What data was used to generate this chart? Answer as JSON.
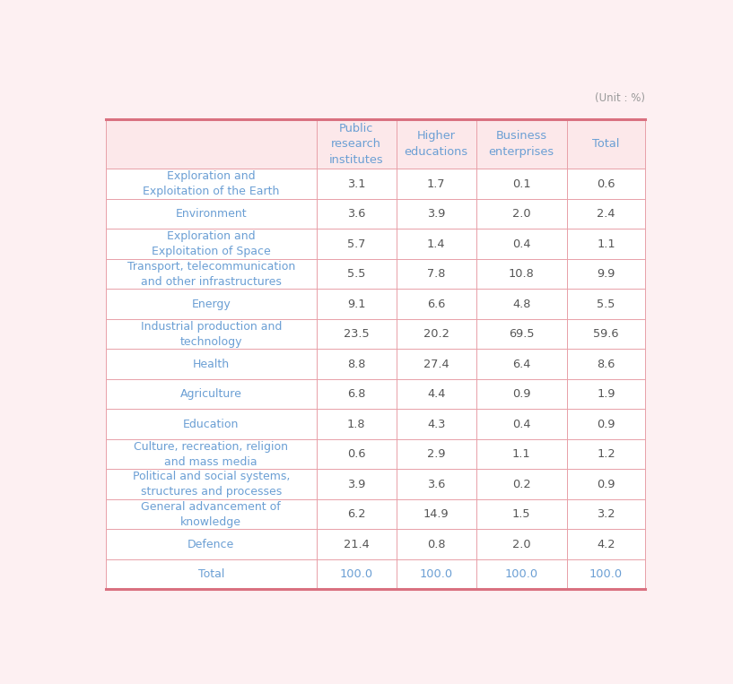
{
  "unit_label": "(Unit : %)",
  "col_headers": [
    "Public\nresearch\ninstitutes",
    "Higher\neducations",
    "Business\nenterprises",
    "Total"
  ],
  "row_labels": [
    "Exploration and\nExploitation of the Earth",
    "Environment",
    "Exploration and\nExploitation of Space",
    "Transport, telecommunication\nand other infrastructures",
    "Energy",
    "Industrial production and\ntechnology",
    "Health",
    "Agriculture",
    "Education",
    "Culture, recreation, religion\nand mass media",
    "Political and social systems,\nstructures and processes",
    "General advancement of\nknowledge",
    "Defence",
    "Total"
  ],
  "data": [
    [
      "3.1",
      "1.7",
      "0.1",
      "0.6"
    ],
    [
      "3.6",
      "3.9",
      "2.0",
      "2.4"
    ],
    [
      "5.7",
      "1.4",
      "0.4",
      "1.1"
    ],
    [
      "5.5",
      "7.8",
      "10.8",
      "9.9"
    ],
    [
      "9.1",
      "6.6",
      "4.8",
      "5.5"
    ],
    [
      "23.5",
      "20.2",
      "69.5",
      "59.6"
    ],
    [
      "8.8",
      "27.4",
      "6.4",
      "8.6"
    ],
    [
      "6.8",
      "4.4",
      "0.9",
      "1.9"
    ],
    [
      "1.8",
      "4.3",
      "0.4",
      "0.9"
    ],
    [
      "0.6",
      "2.9",
      "1.1",
      "1.2"
    ],
    [
      "3.9",
      "3.6",
      "0.2",
      "0.9"
    ],
    [
      "6.2",
      "14.9",
      "1.5",
      "3.2"
    ],
    [
      "21.4",
      "0.8",
      "2.0",
      "4.2"
    ],
    [
      "100.0",
      "100.0",
      "100.0",
      "100.0"
    ]
  ],
  "header_bg_color": "#fce8ea",
  "row_bg_color": "#ffffff",
  "border_color": "#e8a0a8",
  "thick_border_color": "#d97080",
  "row_label_color": "#6b9fd4",
  "data_color_normal": "#555555",
  "total_row_label_color": "#6b9fd4",
  "total_row_data_color": "#6b9fd4",
  "header_text_color": "#6b9fd4",
  "unit_text_color": "#999999",
  "background_color": "#fdf0f2",
  "fig_bg_color": "#fdf0f2"
}
